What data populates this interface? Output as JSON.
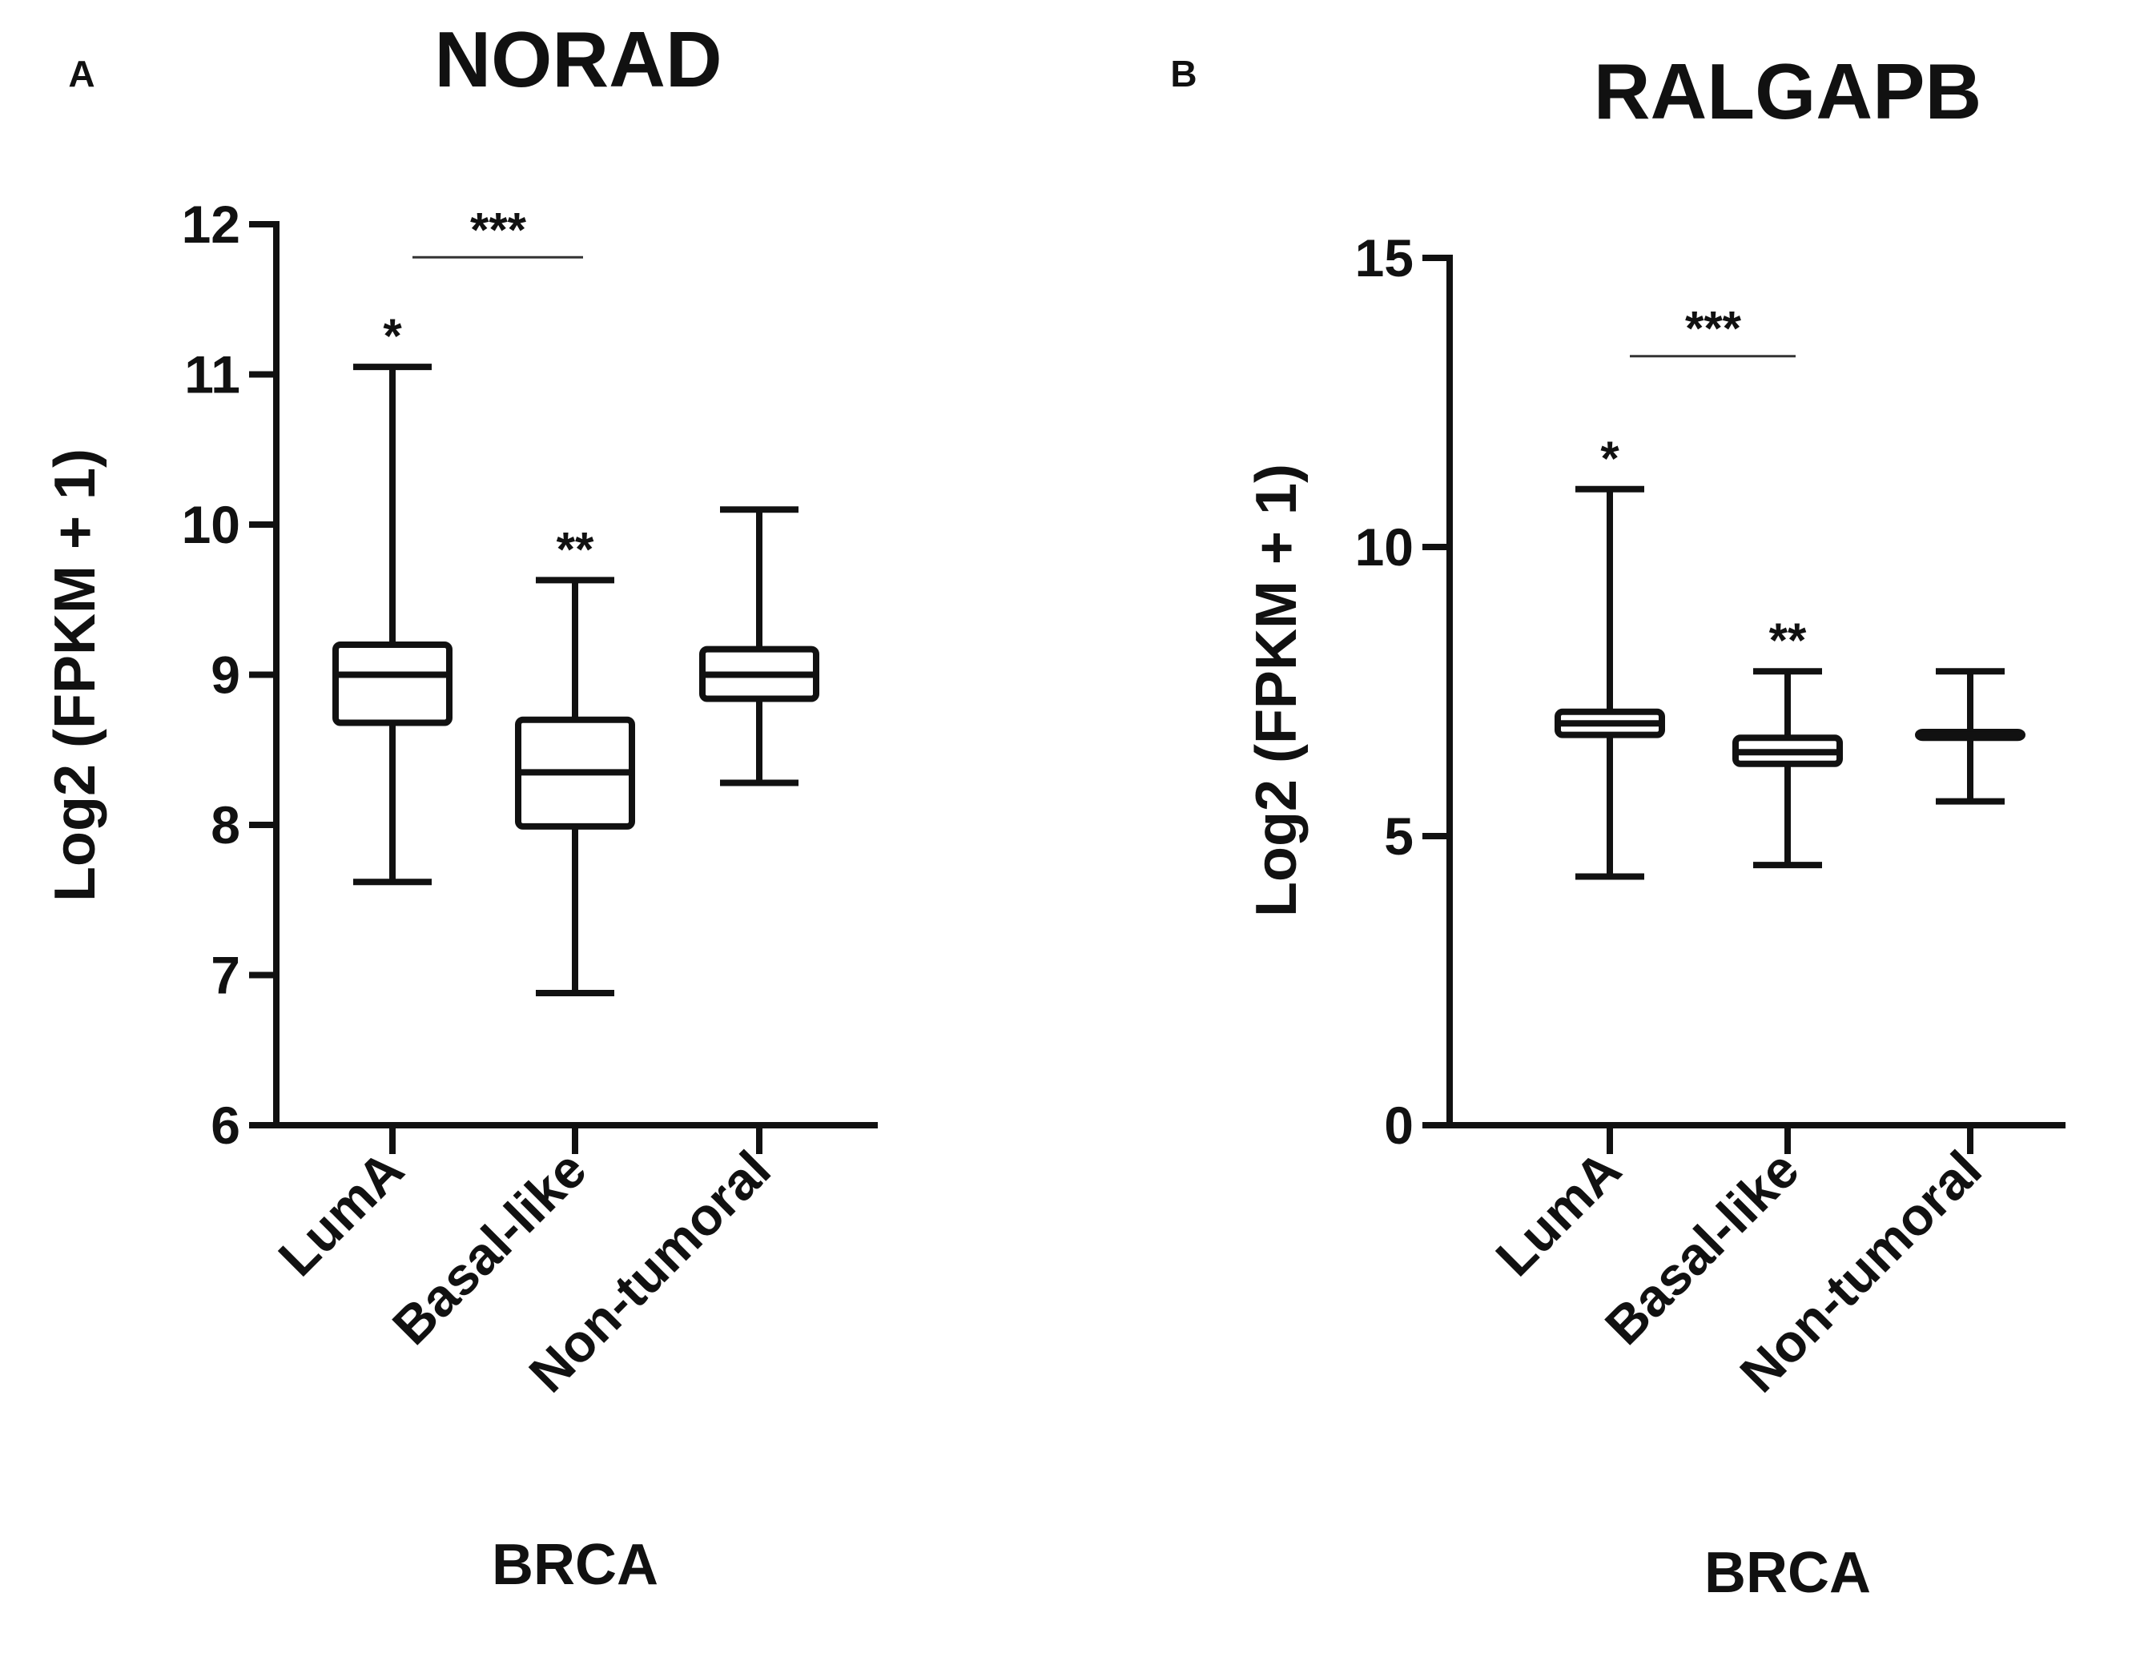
{
  "chart_data": [
    {
      "panel": "A",
      "type": "boxplot",
      "title": "NORAD",
      "xlabel": "BRCA",
      "ylabel": "Log2 (FPKM + 1)",
      "ylim": [
        6,
        12
      ],
      "yticks": [
        6,
        7,
        8,
        9,
        10,
        11,
        12
      ],
      "categories": [
        "LumA",
        "Basal-like",
        "Non-tumoral"
      ],
      "boxes": [
        {
          "category": "LumA",
          "min": 7.62,
          "q1": 8.68,
          "median": 9.0,
          "q3": 9.2,
          "max": 11.05,
          "annotation": "*"
        },
        {
          "category": "Basal-like",
          "min": 6.88,
          "q1": 7.99,
          "median": 8.35,
          "q3": 8.7,
          "max": 9.63,
          "annotation": "**"
        },
        {
          "category": "Non-tumoral",
          "min": 8.28,
          "q1": 8.84,
          "median": 9.0,
          "q3": 9.17,
          "max": 10.1,
          "annotation": ""
        }
      ],
      "comparison": {
        "from": "LumA",
        "to": "Basal-like",
        "label": "***",
        "y": 11.78
      }
    },
    {
      "panel": "B",
      "type": "boxplot",
      "title": "RALGAPB",
      "xlabel": "BRCA",
      "ylabel": "Log2 (FPKM + 1)",
      "ylim": [
        0,
        15
      ],
      "yticks": [
        0,
        5,
        10,
        15
      ],
      "categories": [
        "LumA",
        "Basal-like",
        "Non-tumoral"
      ],
      "boxes": [
        {
          "category": "LumA",
          "min": 4.3,
          "q1": 6.75,
          "median": 6.95,
          "q3": 7.15,
          "max": 11.0,
          "annotation": "*"
        },
        {
          "category": "Basal-like",
          "min": 4.5,
          "q1": 6.25,
          "median": 6.45,
          "q3": 6.7,
          "max": 7.85,
          "annotation": "**"
        },
        {
          "category": "Non-tumoral",
          "min": 5.6,
          "q1": 6.7,
          "median": 6.75,
          "q3": 6.8,
          "max": 7.85,
          "annotation": ""
        }
      ],
      "comparison": {
        "from": "LumA",
        "to": "Basal-like",
        "label": "***",
        "y": 13.3
      }
    }
  ]
}
